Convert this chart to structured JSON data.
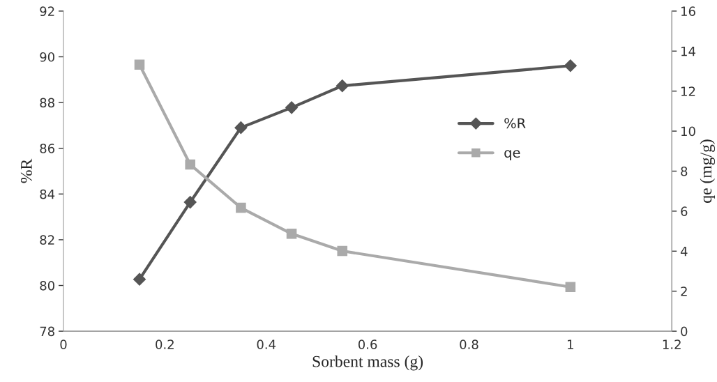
{
  "chart_data": {
    "type": "line",
    "x": [
      0.15,
      0.25,
      0.35,
      0.45,
      0.55,
      1.0
    ],
    "series": [
      {
        "name": "%R",
        "color": "#555555",
        "marker": "diamond",
        "values": [
          80.27,
          83.64,
          86.9,
          87.78,
          88.73,
          89.61
        ]
      },
      {
        "name": "qe",
        "color": "#aaaaaa",
        "marker": "square",
        "axis": "y2",
        "values": [
          13.32,
          8.33,
          6.17,
          4.87,
          4.01,
          2.21
        ]
      }
    ],
    "xlabel": "Sorbent mass (g)",
    "ylabel": "%R",
    "y2label": "qe (mg/g)",
    "xlim": [
      0,
      1.2
    ],
    "xticks": [
      0,
      0.2,
      0.4,
      0.6,
      0.8,
      1,
      1.2
    ],
    "ylim": [
      78,
      92
    ],
    "yticks": [
      78,
      80,
      82,
      84,
      86,
      88,
      90,
      92
    ],
    "y2lim": [
      0,
      16
    ],
    "y2ticks": [
      0,
      2,
      4,
      6,
      8,
      10,
      12,
      14,
      16
    ],
    "grid": false,
    "legend": "right",
    "line_style": "solid"
  }
}
